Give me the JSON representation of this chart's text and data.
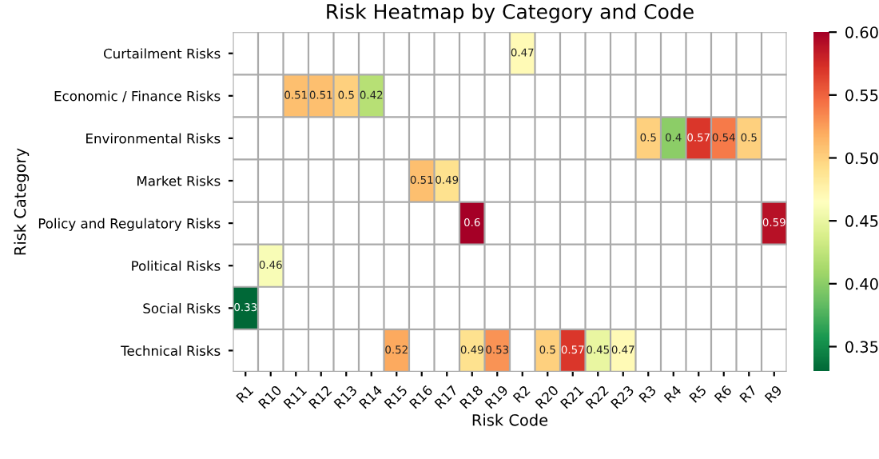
{
  "chart_data": {
    "type": "heatmap",
    "title": "Risk Heatmap by Category and Code",
    "xlabel": "Risk Code",
    "ylabel": "Risk Category",
    "categories": [
      "R1",
      "R10",
      "R11",
      "R12",
      "R13",
      "R14",
      "R15",
      "R16",
      "R17",
      "R18",
      "R19",
      "R2",
      "R20",
      "R21",
      "R22",
      "R23",
      "R3",
      "R4",
      "R5",
      "R6",
      "R7",
      "R9"
    ],
    "y_categories": [
      "Curtailment Risks",
      "Economic / Finance Risks",
      "Environmental Risks",
      "Market Risks",
      "Policy and Regulatory Risks",
      "Political Risks",
      "Social Risks",
      "Technical Risks"
    ],
    "cells": [
      [
        null,
        null,
        null,
        null,
        null,
        null,
        null,
        null,
        null,
        null,
        null,
        0.47,
        null,
        null,
        null,
        null,
        null,
        null,
        null,
        null,
        null,
        null
      ],
      [
        null,
        null,
        0.51,
        0.51,
        0.5,
        0.42,
        null,
        null,
        null,
        null,
        null,
        null,
        null,
        null,
        null,
        null,
        null,
        null,
        null,
        null,
        null,
        null
      ],
      [
        null,
        null,
        null,
        null,
        null,
        null,
        null,
        null,
        null,
        null,
        null,
        null,
        null,
        null,
        null,
        null,
        0.5,
        0.4,
        0.57,
        0.54,
        0.5,
        null
      ],
      [
        null,
        null,
        null,
        null,
        null,
        null,
        null,
        0.51,
        0.49,
        null,
        null,
        null,
        null,
        null,
        null,
        null,
        null,
        null,
        null,
        null,
        null,
        null
      ],
      [
        null,
        null,
        null,
        null,
        null,
        null,
        null,
        null,
        null,
        0.6,
        null,
        null,
        null,
        null,
        null,
        null,
        null,
        null,
        null,
        null,
        null,
        0.59
      ],
      [
        null,
        0.46,
        null,
        null,
        null,
        null,
        null,
        null,
        null,
        null,
        null,
        null,
        null,
        null,
        null,
        null,
        null,
        null,
        null,
        null,
        null,
        null
      ],
      [
        0.33,
        null,
        null,
        null,
        null,
        null,
        null,
        null,
        null,
        null,
        null,
        null,
        null,
        null,
        null,
        null,
        null,
        null,
        null,
        null,
        null,
        null
      ],
      [
        null,
        null,
        null,
        null,
        null,
        null,
        0.52,
        null,
        null,
        0.49,
        0.53,
        null,
        0.5,
        0.57,
        0.45,
        0.47,
        null,
        null,
        null,
        null,
        null,
        null
      ]
    ],
    "clim": [
      0.33,
      0.6
    ],
    "cticks": [
      0.35,
      {
        "value": 0.4,
        "label": "0.40"
      },
      0.45,
      {
        "value": 0.5,
        "label": "0.50"
      },
      0.55,
      {
        "value": 0.6,
        "label": "0.60"
      }
    ],
    "data_labels": true
  }
}
